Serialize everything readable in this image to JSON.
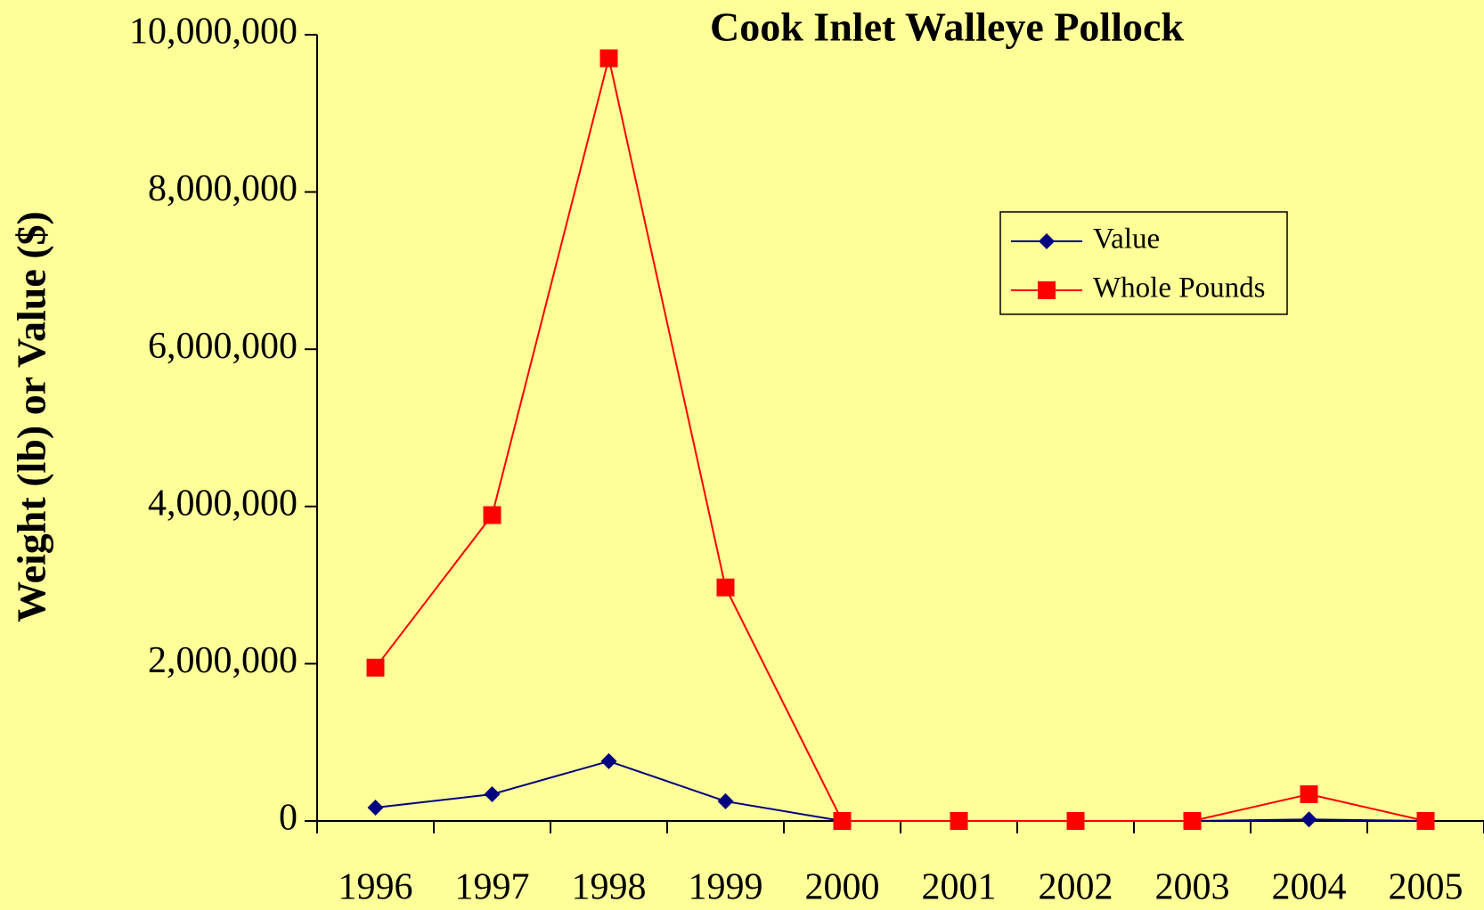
{
  "chart_data": {
    "type": "line",
    "title": "Cook Inlet Walleye Pollock",
    "y_axis_label": "Weight (lb) or Value ($)",
    "categories": [
      "1996",
      "1997",
      "1998",
      "1999",
      "2000",
      "2001",
      "2002",
      "2003",
      "2004",
      "2005"
    ],
    "series": [
      {
        "name": "Value",
        "color": "#000080",
        "marker": "diamond",
        "values": [
          170000,
          340000,
          760000,
          250000,
          0,
          0,
          0,
          0,
          20000,
          0
        ]
      },
      {
        "name": "Whole Pounds",
        "color": "#FF0000",
        "marker": "square",
        "values": [
          1950000,
          3890000,
          9700000,
          2970000,
          0,
          0,
          0,
          0,
          340000,
          0
        ]
      }
    ],
    "ylim": [
      0,
      10000000
    ],
    "yticks": [
      0,
      {
        "value": 2000000,
        "label": "2,000,000"
      },
      {
        "value": 4000000,
        "label": "4,000,000"
      },
      {
        "value": 6000000,
        "label": "6,000,000"
      },
      {
        "value": 8000000,
        "label": "8,000,000"
      },
      {
        "value": 10000000,
        "label": "10,000,000"
      }
    ],
    "grid": false,
    "legend": "upper right"
  }
}
